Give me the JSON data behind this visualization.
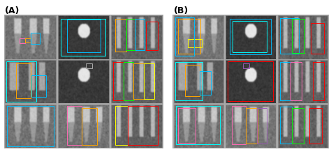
{
  "figsize": [
    4.74,
    2.21
  ],
  "dpi": 100,
  "background_color": "#ffffff",
  "panel_A_label": "(A)",
  "panel_B_label": "(B)",
  "label_fontsize": 9,
  "label_fontweight": "bold",
  "label_color": "#000000"
}
